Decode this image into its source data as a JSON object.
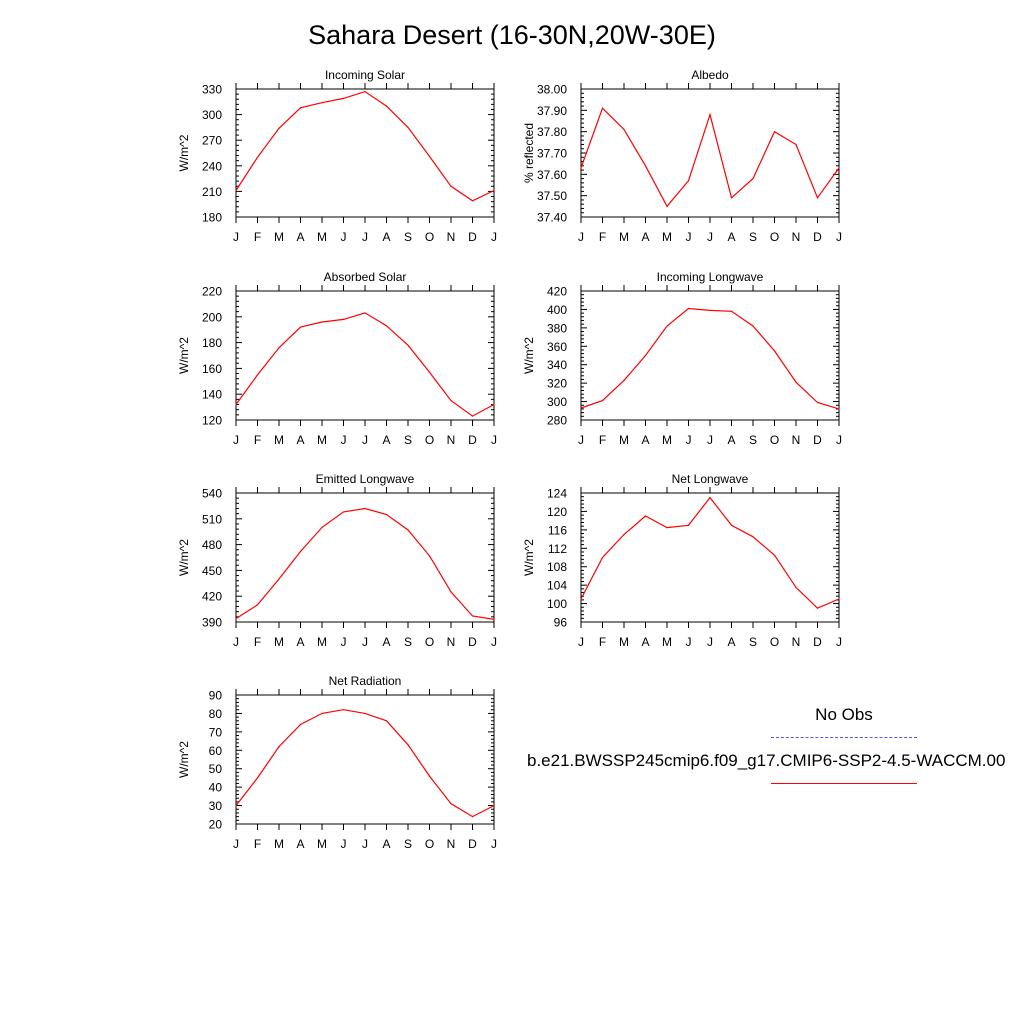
{
  "title": "Sahara Desert (16-30N,20W-30E)",
  "legend": {
    "obs_label": "No Obs",
    "obs_color": "#5555ee",
    "model_label": "b.e21.BWSSP245cmip6.f09_g17.CMIP6-SSP2-4.5-WACCM.00",
    "model_color": "#ff0000"
  },
  "chart_data": [
    {
      "type": "line",
      "title": "Incoming Solar",
      "ylabel": "W/m^2",
      "categories": [
        "J",
        "F",
        "M",
        "A",
        "M",
        "J",
        "J",
        "A",
        "S",
        "O",
        "N",
        "D",
        "J"
      ],
      "ylim": [
        180,
        330
      ],
      "yticks": [
        "180",
        "210",
        "240",
        "270",
        "300",
        "330"
      ],
      "values": [
        211,
        250,
        284,
        308,
        314,
        319,
        327,
        310,
        285,
        251,
        216,
        199,
        211
      ],
      "color": "#ff0000"
    },
    {
      "type": "line",
      "title": "Albedo",
      "ylabel": "% reflected",
      "categories": [
        "J",
        "F",
        "M",
        "A",
        "M",
        "J",
        "J",
        "A",
        "S",
        "O",
        "N",
        "D",
        "J"
      ],
      "ylim": [
        37.4,
        38.0
      ],
      "yticks": [
        "37.40",
        "37.50",
        "37.60",
        "37.70",
        "37.80",
        "37.90",
        "38.00"
      ],
      "values": [
        37.63,
        37.91,
        37.81,
        37.64,
        37.45,
        37.57,
        37.88,
        37.49,
        37.58,
        37.8,
        37.74,
        37.49,
        37.63
      ],
      "color": "#ff0000"
    },
    {
      "type": "line",
      "title": "Absorbed Solar",
      "ylabel": "W/m^2",
      "categories": [
        "J",
        "F",
        "M",
        "A",
        "M",
        "J",
        "J",
        "A",
        "S",
        "O",
        "N",
        "D",
        "J"
      ],
      "ylim": [
        120,
        220
      ],
      "yticks": [
        "120",
        "140",
        "160",
        "180",
        "200",
        "220"
      ],
      "values": [
        132,
        155,
        176,
        192,
        196,
        198,
        203,
        193,
        178,
        157,
        135,
        123,
        132
      ],
      "color": "#ff0000"
    },
    {
      "type": "line",
      "title": "Incoming Longwave",
      "ylabel": "W/m^2",
      "categories": [
        "J",
        "F",
        "M",
        "A",
        "M",
        "J",
        "J",
        "A",
        "S",
        "O",
        "N",
        "D",
        "J"
      ],
      "ylim": [
        280,
        420
      ],
      "yticks": [
        "280",
        "300",
        "320",
        "340",
        "360",
        "380",
        "400",
        "420"
      ],
      "values": [
        293,
        301,
        323,
        350,
        382,
        401,
        399,
        398,
        382,
        355,
        321,
        299,
        292
      ],
      "color": "#ff0000"
    },
    {
      "type": "line",
      "title": "Emitted Longwave",
      "ylabel": "W/m^2",
      "categories": [
        "J",
        "F",
        "M",
        "A",
        "M",
        "J",
        "J",
        "A",
        "S",
        "O",
        "N",
        "D",
        "J"
      ],
      "ylim": [
        390,
        540
      ],
      "yticks": [
        "390",
        "420",
        "450",
        "480",
        "510",
        "540"
      ],
      "values": [
        394,
        410,
        440,
        472,
        500,
        518,
        522,
        515,
        497,
        467,
        425,
        397,
        393
      ],
      "color": "#ff0000"
    },
    {
      "type": "line",
      "title": "Net Longwave",
      "ylabel": "W/m^2",
      "categories": [
        "J",
        "F",
        "M",
        "A",
        "M",
        "J",
        "J",
        "A",
        "S",
        "O",
        "N",
        "D",
        "J"
      ],
      "ylim": [
        96,
        124
      ],
      "yticks": [
        "96",
        "100",
        "104",
        "108",
        "112",
        "116",
        "120",
        "124"
      ],
      "values": [
        101,
        110,
        115,
        119,
        116.5,
        117,
        123,
        117,
        114.5,
        110.5,
        103.5,
        99,
        101
      ],
      "color": "#ff0000"
    },
    {
      "type": "line",
      "title": "Net Radiation",
      "ylabel": "W/m^2",
      "categories": [
        "J",
        "F",
        "M",
        "A",
        "M",
        "J",
        "J",
        "A",
        "S",
        "O",
        "N",
        "D",
        "J"
      ],
      "ylim": [
        20,
        90
      ],
      "yticks": [
        "20",
        "30",
        "40",
        "50",
        "60",
        "70",
        "80",
        "90"
      ],
      "values": [
        30,
        45,
        62,
        74,
        80,
        82,
        80,
        76,
        63,
        46,
        31,
        24,
        30
      ],
      "color": "#ff0000"
    }
  ]
}
